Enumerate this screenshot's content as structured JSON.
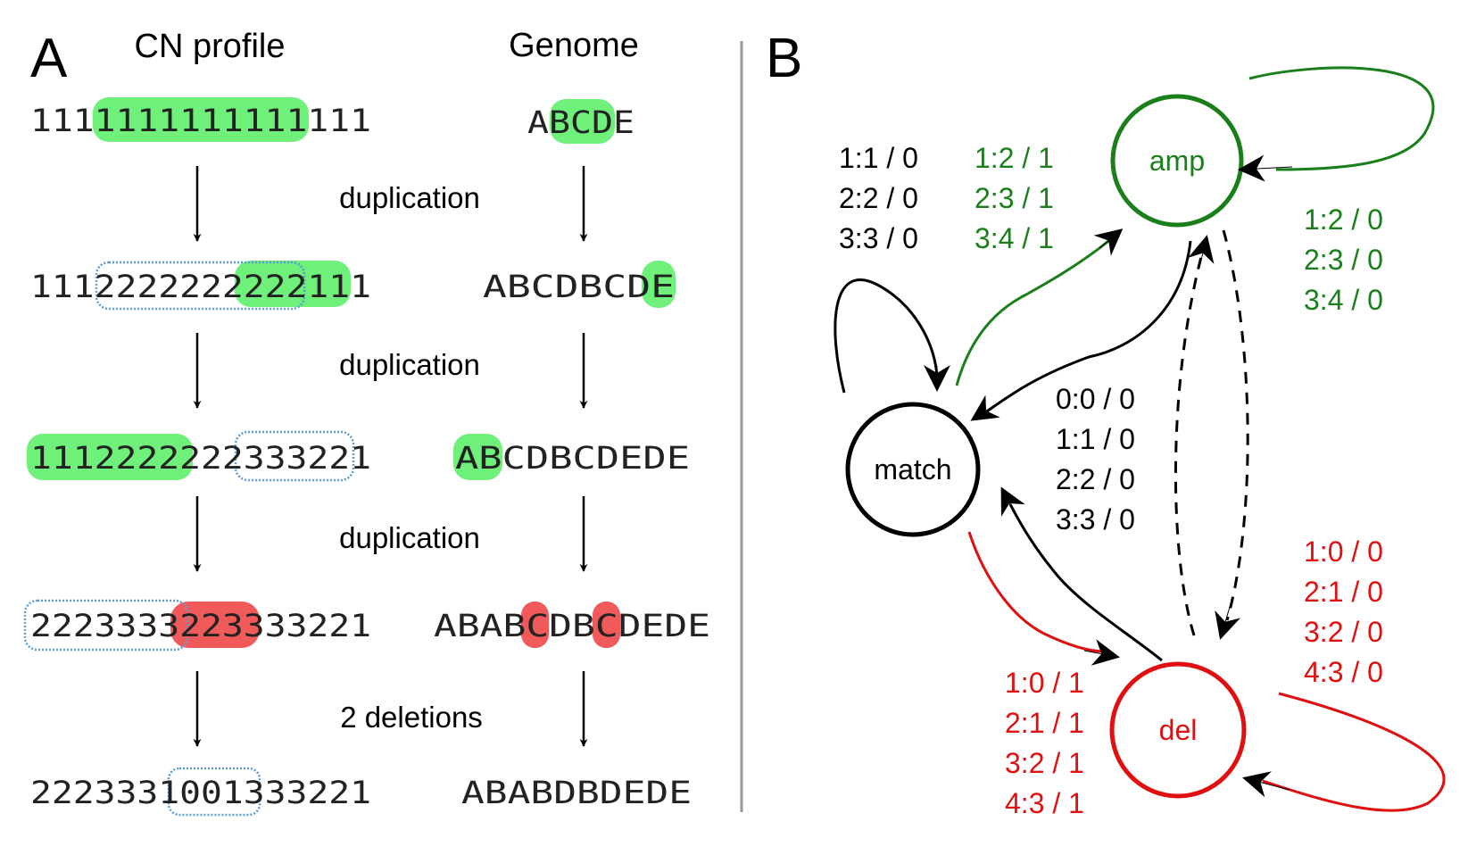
{
  "colors": {
    "highlight_green": "#6ef07a",
    "highlight_red": "#f05a5a",
    "box_blue": "#5b9bd5",
    "amp": "#1a7f1a",
    "del": "#e01010",
    "match": "#000000",
    "divider": "#9a9a9a"
  },
  "panel_a": {
    "label": "A",
    "cn_header": "CN profile",
    "genome_header": "Genome",
    "cn_rows": [
      "1111111111111111",
      "1112222222222111",
      "1112222222333221",
      "2223333223333221",
      "2223331001333221"
    ],
    "genome_rows": [
      "ABCDE",
      "ABCDBCDE",
      "ABCDBCDEDE",
      "ABABCDBCDEDE",
      "ABABDBDEDE"
    ],
    "steps": [
      "duplication",
      "duplication",
      "duplication",
      "2 deletions"
    ]
  },
  "panel_b": {
    "label": "B",
    "nodes": {
      "amp": "amp",
      "match": "match",
      "del": "del"
    },
    "labels": {
      "match_self": [
        "1:1 / 0",
        "2:2 / 0",
        "3:3 / 0"
      ],
      "match_to_amp": [
        "1:2 / 1",
        "2:3 / 1",
        "3:4 / 1"
      ],
      "amp_self": [
        "1:2 / 0",
        "2:3 / 0",
        "3:4 / 0"
      ],
      "to_match": [
        "0:0 / 0",
        "1:1 / 0",
        "2:2 / 0",
        "3:3 / 0"
      ],
      "del_self": [
        "1:0 / 0",
        "2:1 / 0",
        "3:2 / 0",
        "4:3 / 0"
      ],
      "match_to_del": [
        "1:0 / 1",
        "2:1 / 1",
        "3:2 / 1",
        "4:3 / 1"
      ]
    }
  }
}
